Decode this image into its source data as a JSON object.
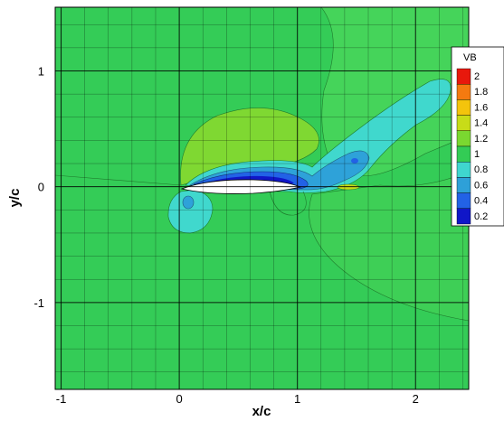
{
  "chart_data": {
    "type": "contour",
    "xlabel": "x/c",
    "ylabel": "y/c",
    "xlim": [
      -1.05,
      2.45
    ],
    "ylim": [
      -1.75,
      1.55
    ],
    "x_ticks": [
      -1,
      0,
      1,
      2
    ],
    "y_ticks": [
      -1,
      0,
      1
    ],
    "grid": true,
    "legend": {
      "title": "VB",
      "placement": "right",
      "levels": [
        {
          "value": "2",
          "color": "#e8180c"
        },
        {
          "value": "1.8",
          "color": "#f47a10"
        },
        {
          "value": "1.6",
          "color": "#f4c40c"
        },
        {
          "value": "1.4",
          "color": "#c8dc18"
        },
        {
          "value": "1.2",
          "color": "#7ad830"
        },
        {
          "value": "1",
          "color": "#33cc55"
        },
        {
          "value": "0.8",
          "color": "#3fd6cf"
        },
        {
          "value": "0.6",
          "color": "#2ea0d8"
        },
        {
          "value": "0.4",
          "color": "#2262e6"
        },
        {
          "value": "0.2",
          "color": "#1016c8"
        }
      ]
    },
    "background_level": "1",
    "airfoil": {
      "leading_edge": [
        0,
        0
      ],
      "trailing_edge": [
        1,
        0
      ]
    }
  }
}
